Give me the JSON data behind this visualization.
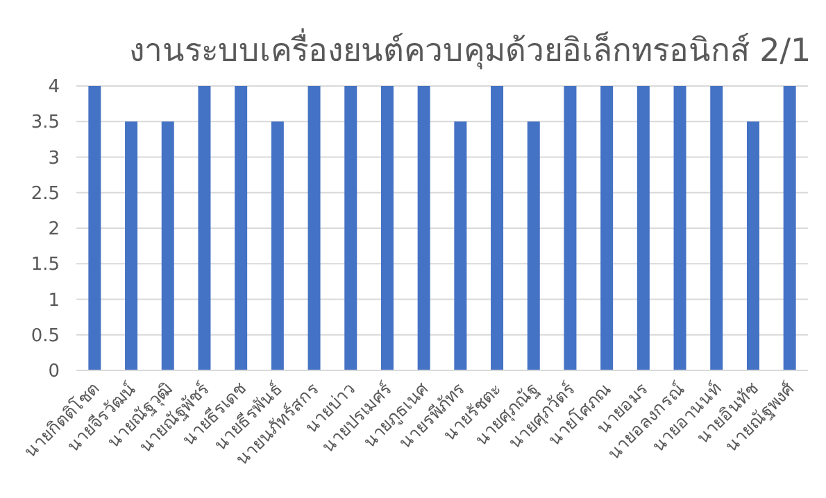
{
  "chart_data": {
    "type": "bar",
    "title": "งานระบบเครื่องยนต์ควบคุมด้วยอิเล็กทรอนิกส์ 2/1",
    "categories": [
      "นายกิตติโชต",
      "นายจีรวัฒน์",
      "นายณัฐวุฒิ",
      "นายณัฐพัชร์",
      "นายธีรเดช",
      "นายธีรพันธ์",
      "นายนภัทร์สกร",
      "นายบ่าว",
      "นายปรเมศร์",
      "นายภูธเนศ",
      "นายรพีภัทร",
      "นายรัชตะ",
      "นายศุภณัฐ",
      "นายศุภวัตร์",
      "นายโศภณ",
      "นายอมร",
      "นายอลงกรณ์",
      "นายอานนท์",
      "นายอินทัช",
      "นายณัฐพงศ์"
    ],
    "values": [
      4,
      3.5,
      3.5,
      4,
      4,
      3.5,
      4,
      4,
      4,
      4,
      3.5,
      4,
      3.5,
      4,
      4,
      4,
      4,
      4,
      3.5,
      4
    ],
    "color": "#4472c4",
    "ylim": [
      0,
      4
    ],
    "yticks": [
      0,
      0.5,
      1,
      1.5,
      2,
      2.5,
      3,
      3.5,
      4
    ],
    "grid": "y"
  }
}
